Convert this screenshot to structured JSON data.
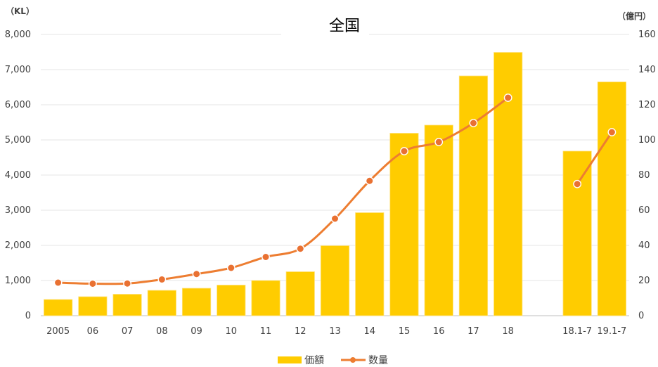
{
  "chart_data": {
    "type": "bar",
    "title": "全国",
    "y_left_unit": "（KL）",
    "y_right_unit": "（億円）",
    "categories": [
      "2005",
      "06",
      "07",
      "08",
      "09",
      "10",
      "11",
      "12",
      "13",
      "14",
      "15",
      "16",
      "17",
      "18",
      "",
      "18.1-7",
      "19.1-7"
    ],
    "series": [
      {
        "name": "価額",
        "type": "bar",
        "axis": "left",
        "color": "#FFCC00",
        "values": [
          460,
          540,
          610,
          720,
          780,
          870,
          1000,
          1250,
          1990,
          2930,
          5190,
          5420,
          6820,
          7490,
          null,
          4680,
          6650
        ]
      },
      {
        "name": "数量",
        "type": "line",
        "axis": "right",
        "color": "#ED7D31",
        "segments": [
          [
            0,
            13
          ],
          [
            15,
            16
          ]
        ],
        "values": [
          18.8,
          18.2,
          18.3,
          20.6,
          23.7,
          27.2,
          33.4,
          38.1,
          55.2,
          76.7,
          93.6,
          98.8,
          109.6,
          124.0,
          null,
          74.9,
          104.4
        ]
      }
    ],
    "y_left": {
      "min": 0,
      "max": 8000,
      "step": 1000,
      "tick_labels": [
        "0",
        "1,000",
        "2,000",
        "3,000",
        "4,000",
        "5,000",
        "6,000",
        "7,000",
        "8,000"
      ]
    },
    "y_right": {
      "min": 0,
      "max": 160,
      "step": 20,
      "tick_labels": [
        "0",
        "20",
        "40",
        "60",
        "80",
        "100",
        "120",
        "140",
        "160"
      ]
    },
    "grid": true,
    "legend_position": "bottom"
  }
}
